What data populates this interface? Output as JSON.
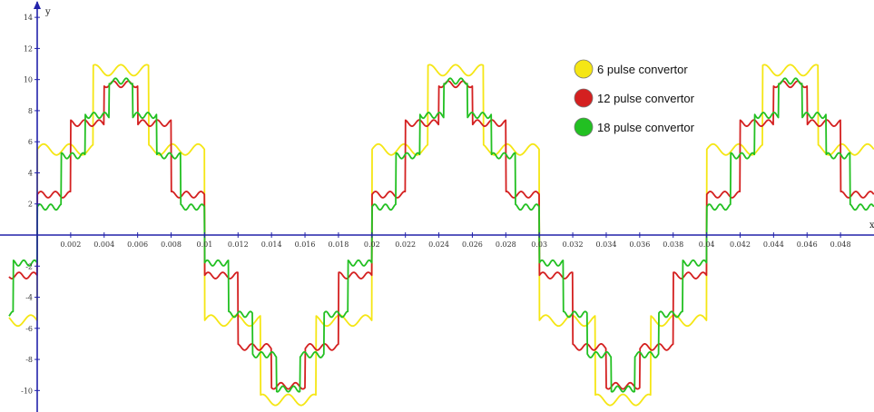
{
  "chart_data": {
    "type": "line",
    "title": "",
    "xlabel": "x",
    "ylabel": "y",
    "xlim": [
      -0.0015,
      0.05
    ],
    "ylim": [
      -11.7,
      15
    ],
    "grid": false,
    "legend_position": "top-right",
    "x_ticks": [
      0.002,
      0.004,
      0.006,
      0.008,
      0.01,
      0.012,
      0.014,
      0.016,
      0.018,
      0.02,
      0.022,
      0.024,
      0.026,
      0.028,
      0.03,
      0.032,
      0.034,
      0.036,
      0.038,
      0.04,
      0.042,
      0.044,
      0.046,
      0.048
    ],
    "x_tick_labels": [
      "0.002",
      "0.004",
      "0.006",
      "0.008",
      "0.01",
      "0.012",
      "0.014",
      "0.016",
      "0.018",
      "0.02",
      "0.022",
      "0.024",
      "0.026",
      "0.028",
      "0.03",
      "0.032",
      "0.034",
      "0.036",
      "0.038",
      "0.04",
      "0.042",
      "0.044",
      "0.046",
      "0.048"
    ],
    "y_ticks": [
      -10,
      -8,
      -6,
      -4,
      -2,
      2,
      4,
      6,
      8,
      10,
      12,
      14
    ],
    "y_tick_labels": [
      "-10",
      "-8",
      "-6",
      "-4",
      "-2",
      "2",
      "4",
      "6",
      "8",
      "10",
      "12",
      "14"
    ],
    "frequency_hz": 50,
    "series": [
      {
        "name": "6 pulse convertor",
        "color": "#f5e614",
        "levels": [
          5.5,
          10.6,
          5.5
        ],
        "ripple_amplitude": 0.35,
        "ripple_harmonic": 13
      },
      {
        "name": "12 pulse convertor",
        "color": "#d42020",
        "levels": [
          2.6,
          7.2,
          9.7,
          7.2,
          2.6
        ],
        "ripple_amplitude": 0.2,
        "ripple_harmonic": 23
      },
      {
        "name": "18 pulse convertor",
        "color": "#22c022",
        "levels": [
          1.8,
          5.1,
          7.7,
          9.9,
          7.7,
          5.1,
          1.8
        ],
        "ripple_amplitude": 0.18,
        "ripple_harmonic": 31
      }
    ]
  }
}
